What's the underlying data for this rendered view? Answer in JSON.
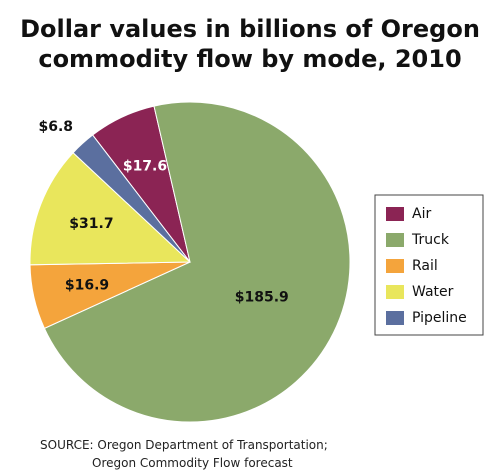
{
  "chart_data": {
    "type": "pie",
    "title": "Dollar values in billions of Oregon commodity flow by mode, 2010",
    "categories": [
      "Air",
      "Truck",
      "Rail",
      "Water",
      "Pipeline"
    ],
    "values": [
      17.6,
      185.9,
      16.9,
      31.7,
      6.8
    ],
    "value_labels": [
      "$17.6",
      "$185.9",
      "$16.9",
      "$31.7",
      "$6.8"
    ],
    "colors": [
      "#8b2454",
      "#8ba96b",
      "#f4a43c",
      "#e9e65c",
      "#5b6f9f"
    ],
    "source": [
      "SOURCE:  Oregon Department of Transportation;",
      "Oregon Commodity Flow forecast"
    ]
  }
}
